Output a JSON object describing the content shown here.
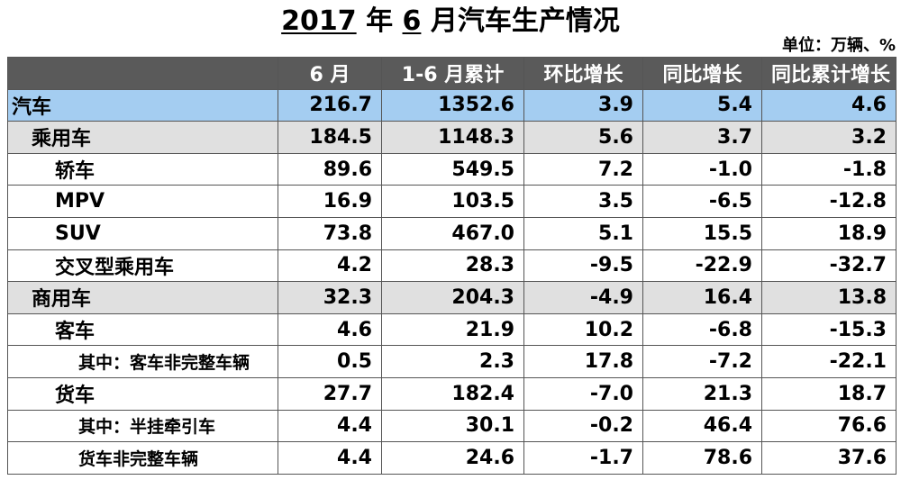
{
  "title": {
    "year": "2017",
    "nian": " 年 ",
    "month": "6",
    "rest": " 月汽车生产情况"
  },
  "unit": "单位：万辆、%",
  "table": {
    "headers": [
      "",
      "6 月",
      "1-6 月累计",
      "环比增长",
      "同比增长",
      "同比累计增长"
    ],
    "rows": [
      {
        "level": 0,
        "name": "汽车",
        "values": [
          "216.7",
          "1352.6",
          "3.9",
          "5.4",
          "4.6"
        ]
      },
      {
        "level": 1,
        "name": "乘用车",
        "values": [
          "184.5",
          "1148.3",
          "5.6",
          "3.7",
          "3.2"
        ]
      },
      {
        "level": 2,
        "name": "轿车",
        "values": [
          "89.6",
          "549.5",
          "7.2",
          "-1.0",
          "-1.8"
        ]
      },
      {
        "level": 2,
        "name": "MPV",
        "values": [
          "16.9",
          "103.5",
          "3.5",
          "-6.5",
          "-12.8"
        ]
      },
      {
        "level": 2,
        "name": "SUV",
        "values": [
          "73.8",
          "467.0",
          "5.1",
          "15.5",
          "18.9"
        ]
      },
      {
        "level": 2,
        "name": "交叉型乘用车",
        "values": [
          "4.2",
          "28.3",
          "-9.5",
          "-22.9",
          "-32.7"
        ]
      },
      {
        "level": 1,
        "name": "商用车",
        "values": [
          "32.3",
          "204.3",
          "-4.9",
          "16.4",
          "13.8"
        ]
      },
      {
        "level": 2,
        "name": "客车",
        "values": [
          "4.6",
          "21.9",
          "10.2",
          "-6.8",
          "-15.3"
        ]
      },
      {
        "level": 3,
        "name": "其中：客车非完整车辆",
        "values": [
          "0.5",
          "2.3",
          "17.8",
          "-7.2",
          "-22.1"
        ]
      },
      {
        "level": 2,
        "name": "货车",
        "values": [
          "27.7",
          "182.4",
          "-7.0",
          "21.3",
          "18.7"
        ]
      },
      {
        "level": 3,
        "name": "其中：半挂牵引车",
        "values": [
          "4.4",
          "30.1",
          "-0.2",
          "46.4",
          "76.6"
        ]
      },
      {
        "level": 3,
        "name": "货车非完整车辆",
        "values": [
          "4.4",
          "24.6",
          "-1.7",
          "78.6",
          "37.6"
        ]
      }
    ]
  }
}
